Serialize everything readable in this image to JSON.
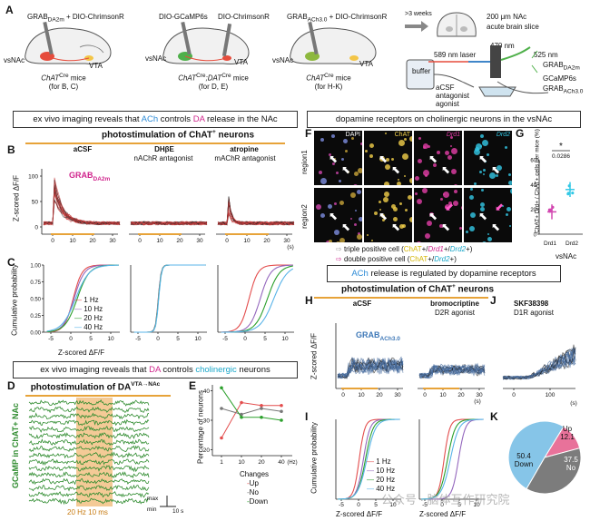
{
  "panels": {
    "A": "A",
    "B": "B",
    "C": "C",
    "D": "D",
    "E": "E",
    "F": "F",
    "G": "G",
    "H": "H",
    "I": "I",
    "J": "J",
    "K": "K"
  },
  "schematics": [
    {
      "sensor": "GRAB",
      "sub": "DA2m",
      "plus": " + DIO-ChrimsonR",
      "left": "vsNAc",
      "right": "VTA",
      "mice": "ChAT",
      "mice_sup": "Cre",
      "mice_tail": " mice",
      "for": "(for B, C)"
    },
    {
      "sensor": "DIO-GCaMP6s",
      "sub": "",
      "plus": "",
      "second": "DIO-ChrimsonR",
      "left": "vsNAc",
      "right": "VTA",
      "mice": "ChAT",
      "mice_sup": "Cre",
      "mice_mid": ";DAT",
      "mice_sup2": "Cre",
      "mice_tail": " mice",
      "for": "(for D, E)"
    },
    {
      "sensor": "GRAB",
      "sub": "ACh3.0",
      "plus": " + DIO-ChrimsonR",
      "left": "vsNAc",
      "right": "VTA",
      "mice": "ChAT",
      "mice_sup": "Cre",
      "mice_tail": " mice",
      "for": "(for H-K)"
    }
  ],
  "prep": {
    "weeks": ">3 weeks",
    "slice": "200 μm NAc",
    "slice2": "acute brain slice",
    "laser589": "589 nm laser",
    "nm470": "470 nm",
    "nm525": "525 nm",
    "buffer": "buffer",
    "drug1": "aCSF",
    "drug2": "antagonist",
    "drug3": "agonist",
    "s1": "GRAB",
    "s1sub": "DA2m",
    "s2": "GCaMP6s",
    "s3": "GRAB",
    "s3sub": "ACh3.0"
  },
  "banners": {
    "b1_pre": "ex vivo imaging reveals that ",
    "b1_ach": "ACh",
    "b1_mid": " controls ",
    "b1_da": "DA",
    "b1_post": " release in the NAc",
    "b2": "dopamine receptors on cholinergic neurons in the vsNAc",
    "b3_pre": "ex vivo imaging reveals that ",
    "b3_da": "DA",
    "b3_mid": " controls ",
    "b3_ch": "cholinergic",
    "b3_post": " neurons",
    "b4_ach": "ACh",
    "b4_post": " release is regulated by dopamine receptors"
  },
  "photo_chat": "photostimulation of ChAT",
  "photo_sup": "+",
  "photo_post": " neurons",
  "photo_da": "photostimulation of DA",
  "photo_da_sup": "VTA→NAc",
  "B": {
    "cols": [
      {
        "t1": "aCSF",
        "t2": ""
      },
      {
        "t1": "DHβE",
        "t2": "nAChR antagonist"
      },
      {
        "t1": "atropine",
        "t2": "mAChR antagonist"
      }
    ],
    "sensor": "GRAB",
    "sensor_sub": "DA2m",
    "ylabel": "Z-scored ΔF/F",
    "yticks": [
      "0",
      "50",
      "100"
    ],
    "xticks": [
      "0",
      "10",
      "20",
      "30"
    ],
    "xunit": "(s)"
  },
  "C": {
    "ylabel": "Cumulative probability",
    "yticks": [
      "0.00",
      "0.25",
      "0.50",
      "0.75",
      "1.00"
    ],
    "xticks": [
      "-5",
      "0",
      "5",
      "10"
    ],
    "xlabel": "Z-scored ΔF/F",
    "legend": [
      "1 Hz",
      "10 Hz",
      "20 Hz",
      "40 Hz"
    ]
  },
  "D": {
    "ylabel": "GCaMP in ChAT+ NAc",
    "stim": "20 Hz 10 ms",
    "max": "max",
    "min": "min",
    "scale": "10 s"
  },
  "E": {
    "ylabel": "Percentage of neurons",
    "yticks": [
      "20",
      "30",
      "40"
    ],
    "xticks": [
      "1",
      "10",
      "20",
      "40"
    ],
    "xunit": "(Hz)",
    "legend_title": "Changes",
    "legend": [
      "Up",
      "No",
      "Down"
    ]
  },
  "F": {
    "channels": [
      "DAPI",
      "ChAT",
      "Drd1",
      "Drd2"
    ],
    "rows": [
      "region1",
      "region2"
    ],
    "leg1_pre": "triple positive cell (",
    "leg1_a": "ChAT",
    "leg1_b": "+/",
    "leg1_c": "Drd1",
    "leg1_d": "+/",
    "leg1_e": "Drd2",
    "leg1_f": "+)",
    "leg2_pre": "double positive cell (",
    "leg2_a": "ChAT",
    "leg2_b": "+/",
    "leg2_c": "Drd2",
    "leg2_d": "+)"
  },
  "G": {
    "pval": "0.0286",
    "star": "*",
    "ylabel": "ChAT+ Drd+ / ChAT+ cells per mice (%)",
    "yticks": [
      "0",
      "20",
      "40",
      "60"
    ],
    "x1": "Drd1",
    "x2": "Drd2",
    "xlabel": "vsNAc"
  },
  "H": {
    "cols": [
      {
        "t1": "aCSF",
        "t2": ""
      },
      {
        "t1": "bromocriptine",
        "t2": "D2R agonist"
      }
    ],
    "sensor": "GRAB",
    "sensor_sub": "ACh3.0",
    "ylabel": "Z-scored ΔF/F",
    "xticks": [
      "0",
      "10",
      "20",
      "30"
    ],
    "xunit": "(s)"
  },
  "J": {
    "t1": "SKF38398",
    "t2": "D1R agonist",
    "xticks": [
      "0",
      "100"
    ],
    "xunit": "(s)"
  },
  "I": {
    "ylabel": "Cumulative probability",
    "xlabel": "Z-scored ΔF/F",
    "xticks": [
      "-5",
      "0",
      "5",
      "10"
    ],
    "legend": [
      "1 Hz",
      "10 Hz",
      "20 Hz",
      "40 Hz"
    ]
  },
  "K": {
    "slices": [
      {
        "label": "Up",
        "value": 12.1,
        "color": "#e8729a"
      },
      {
        "label": "No",
        "value": 37.5,
        "color": "#7c7c7c"
      },
      {
        "label": "Down",
        "value": 50.4,
        "color": "#86c5e8"
      }
    ],
    "txt_up": "Up",
    "val_up": "12.1",
    "txt_no": "No",
    "val_no": "37.5",
    "txt_down": "Down",
    "val_down": "50.4"
  },
  "watermark": "公众号 · 脑体互作研究院",
  "colors": {
    "hz1": "#e34d4d",
    "hz10": "#9467bd",
    "hz20": "#2ca02c",
    "hz40": "#5ab4e8",
    "magenta": "#d0268d",
    "orange": "#e7a339",
    "trace": "#4a6fa0"
  }
}
